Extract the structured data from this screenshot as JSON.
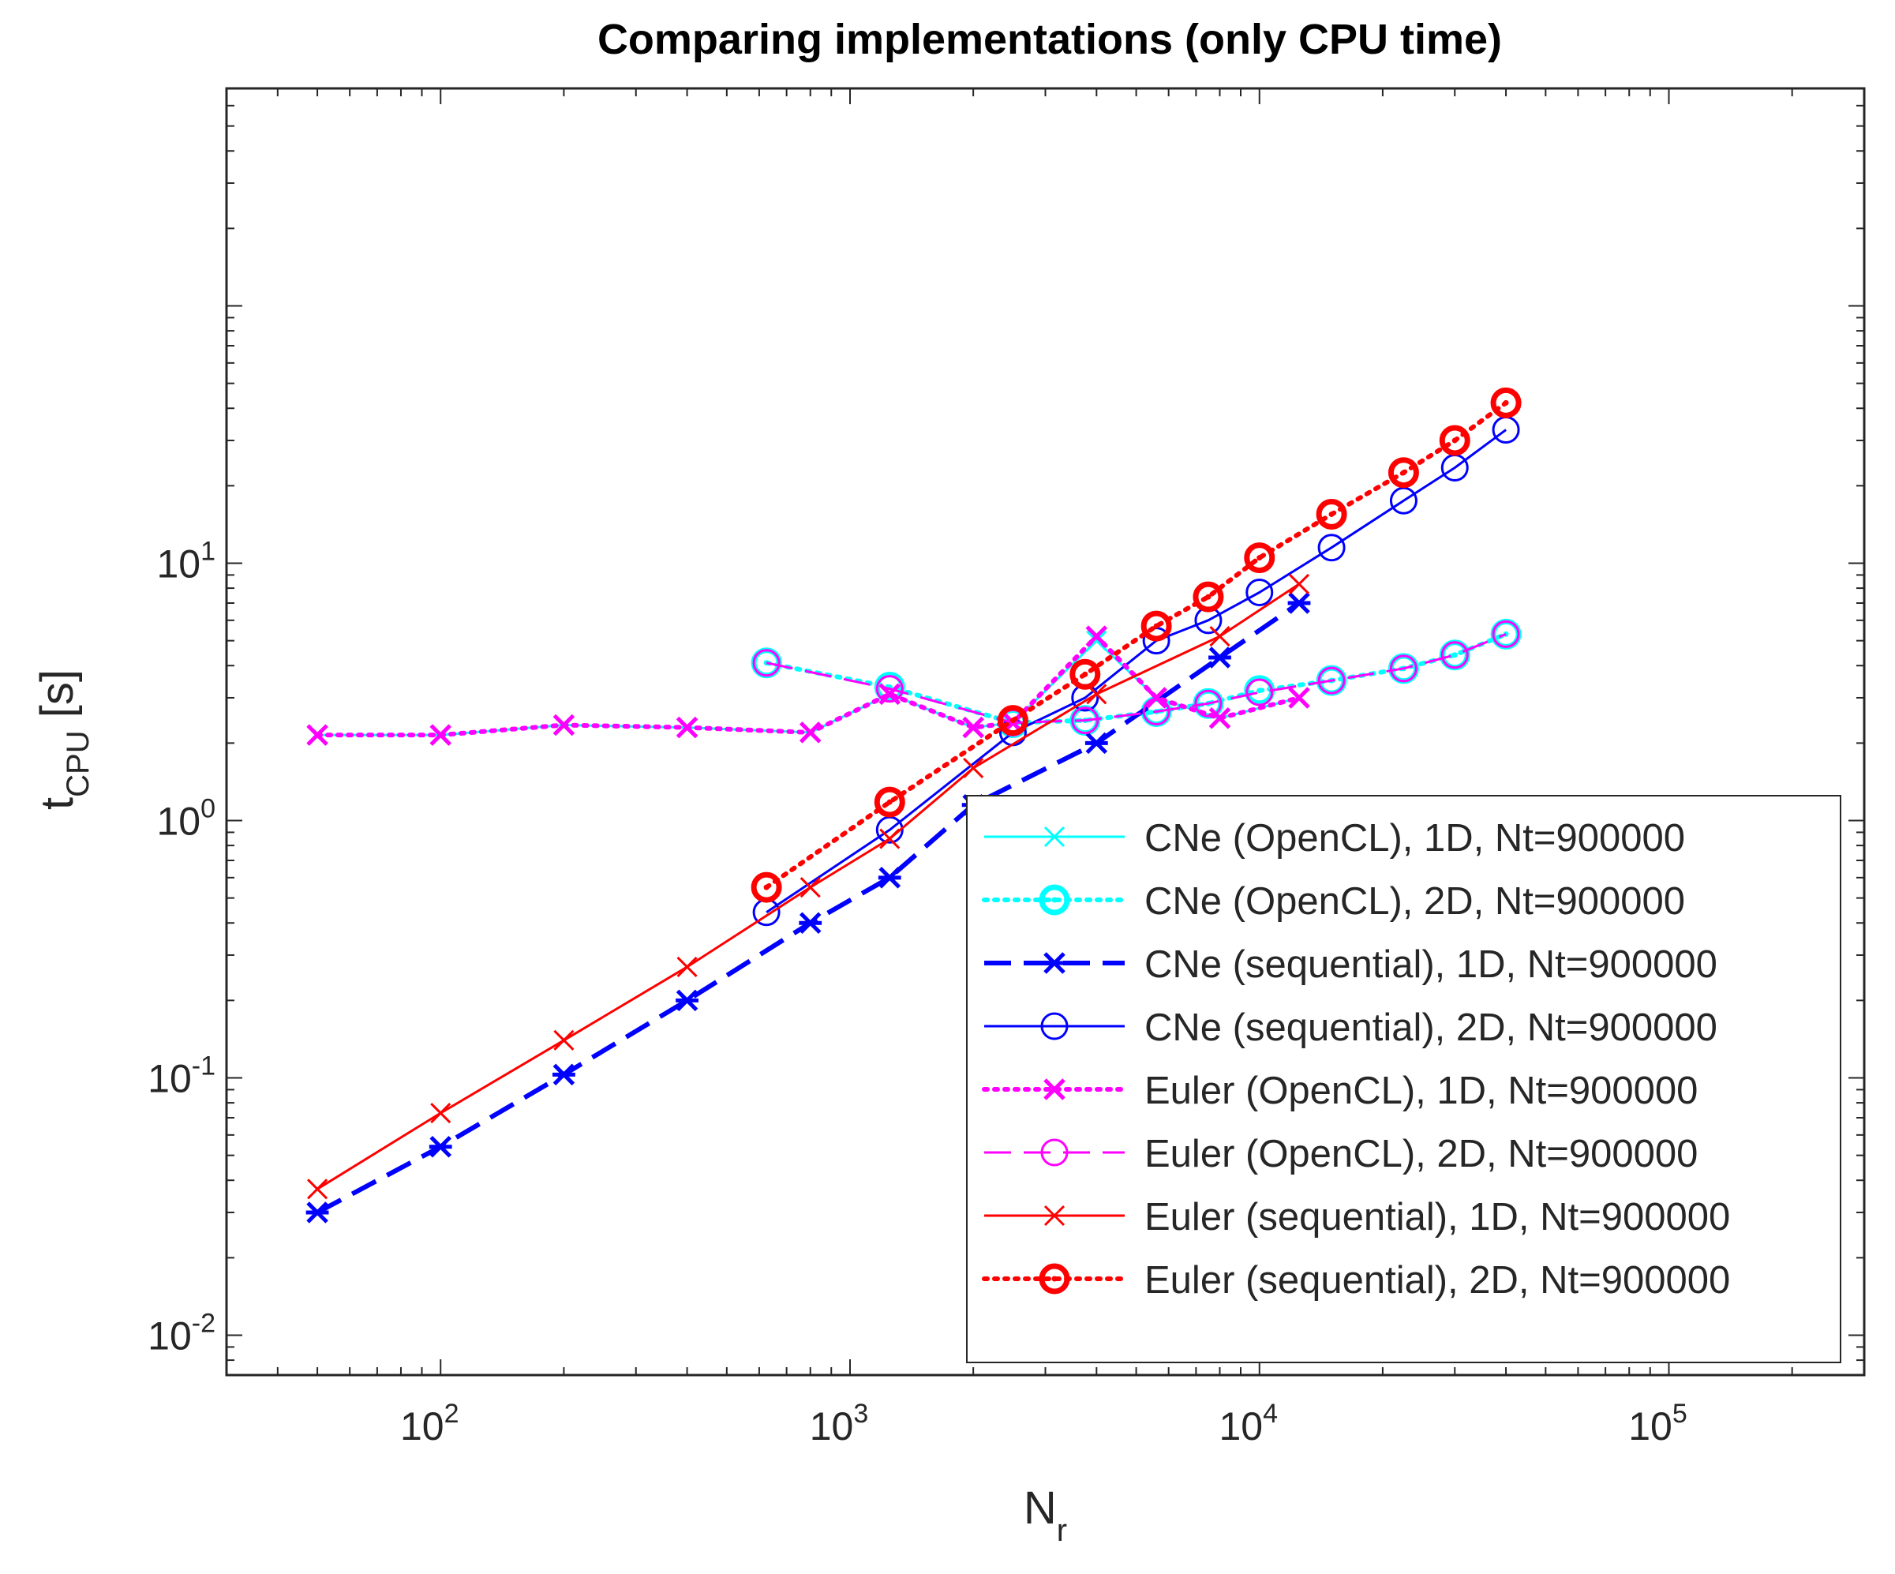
{
  "chart_data": {
    "type": "line",
    "title": "Comparing implementations (only CPU time)",
    "xlabel": {
      "base": "N",
      "sub": "r"
    },
    "ylabel": {
      "base": "t",
      "sub": "CPU",
      "suffix": " [s]"
    },
    "xscale": "log",
    "yscale": "log",
    "xlim": [
      30,
      300000
    ],
    "ylim": [
      0.007,
      700
    ],
    "xticks": [
      {
        "value": 100,
        "base": "10",
        "exp": "2"
      },
      {
        "value": 1000,
        "base": "10",
        "exp": "3"
      },
      {
        "value": 10000,
        "base": "10",
        "exp": "4"
      },
      {
        "value": 100000,
        "base": "10",
        "exp": "5"
      }
    ],
    "yticks": [
      {
        "value": 0.01,
        "base": "10",
        "exp": "-2"
      },
      {
        "value": 0.1,
        "base": "10",
        "exp": "-1"
      },
      {
        "value": 1,
        "base": "10",
        "exp": "0"
      },
      {
        "value": 10,
        "base": "10",
        "exp": "1"
      }
    ],
    "grid": false,
    "legend_position": "bottom-right",
    "series": [
      {
        "name": "CNe (OpenCL), 1D, Nt=900000",
        "color": "#00ffff",
        "line": "solid",
        "marker": "x",
        "marker_size": "normal",
        "line_weight": "normal",
        "x": [
          50,
          100,
          200,
          400,
          800,
          1250,
          2000,
          2500,
          4000,
          5600,
          8000,
          12500
        ],
        "y": [
          2.15,
          2.15,
          2.35,
          2.3,
          2.2,
          3.1,
          2.3,
          2.4,
          5.0,
          3.0,
          2.5,
          3.0
        ]
      },
      {
        "name": "CNe (OpenCL), 2D, Nt=900000",
        "color": "#00ffff",
        "line": "dotted",
        "marker": "o",
        "marker_size": "large",
        "line_weight": "bold",
        "x": [
          625,
          1250,
          2500,
          3750,
          5600,
          7500,
          10000,
          15000,
          22500,
          30000,
          40000
        ],
        "y": [
          4.1,
          3.3,
          2.4,
          2.45,
          2.65,
          2.85,
          3.2,
          3.5,
          3.9,
          4.4,
          5.3
        ]
      },
      {
        "name": "CNe (sequential), 1D, Nt=900000",
        "color": "#0000ff",
        "line": "dashed",
        "marker": "asterisk",
        "marker_size": "normal",
        "line_weight": "bold",
        "x": [
          50,
          100,
          200,
          400,
          800,
          1250,
          2000,
          4000,
          8000,
          12500
        ],
        "y": [
          0.03,
          0.054,
          0.103,
          0.2,
          0.4,
          0.6,
          1.15,
          2.0,
          4.3,
          7.0
        ]
      },
      {
        "name": "CNe (sequential), 2D, Nt=900000",
        "color": "#0000ff",
        "line": "solid",
        "marker": "o",
        "marker_size": "normal",
        "line_weight": "normal",
        "x": [
          625,
          1250,
          2500,
          3750,
          5600,
          7500,
          10000,
          15000,
          22500,
          30000,
          40000
        ],
        "y": [
          0.44,
          0.92,
          2.2,
          3.0,
          5.0,
          6.0,
          7.7,
          11.5,
          17.5,
          23.5,
          33.0
        ]
      },
      {
        "name": "Euler (OpenCL), 1D, Nt=900000",
        "color": "#ff00ff",
        "line": "dotted",
        "marker": "x",
        "marker_size": "normal",
        "line_weight": "bold",
        "x": [
          50,
          100,
          200,
          400,
          800,
          1250,
          2000,
          2500,
          4000,
          5600,
          8000,
          12500
        ],
        "y": [
          2.15,
          2.15,
          2.35,
          2.3,
          2.2,
          3.1,
          2.3,
          2.4,
          5.2,
          3.0,
          2.5,
          3.0
        ]
      },
      {
        "name": "Euler (OpenCL), 2D, Nt=900000",
        "color": "#ff00ff",
        "line": "dashed",
        "marker": "o",
        "marker_size": "normal",
        "line_weight": "normal",
        "x": [
          625,
          1250,
          2500,
          3750,
          5600,
          7500,
          10000,
          15000,
          22500,
          30000,
          40000
        ],
        "y": [
          4.1,
          3.25,
          2.4,
          2.45,
          2.65,
          2.85,
          3.15,
          3.5,
          3.9,
          4.4,
          5.3
        ]
      },
      {
        "name": "Euler (sequential), 1D, Nt=900000",
        "color": "#ff0000",
        "line": "solid",
        "marker": "x",
        "marker_size": "normal",
        "line_weight": "normal",
        "x": [
          50,
          100,
          200,
          400,
          800,
          1250,
          2000,
          4000,
          8000,
          12500
        ],
        "y": [
          0.037,
          0.073,
          0.14,
          0.27,
          0.55,
          0.85,
          1.6,
          3.1,
          5.2,
          8.3
        ]
      },
      {
        "name": "Euler (sequential), 2D, Nt=900000",
        "color": "#ff0000",
        "line": "dotted",
        "marker": "o",
        "marker_size": "large",
        "line_weight": "bold",
        "x": [
          625,
          1250,
          2500,
          3750,
          5600,
          7500,
          10000,
          15000,
          22500,
          30000,
          40000
        ],
        "y": [
          0.55,
          1.18,
          2.45,
          3.7,
          5.7,
          7.4,
          10.5,
          15.5,
          22.5,
          30.0,
          42.0
        ]
      }
    ]
  }
}
